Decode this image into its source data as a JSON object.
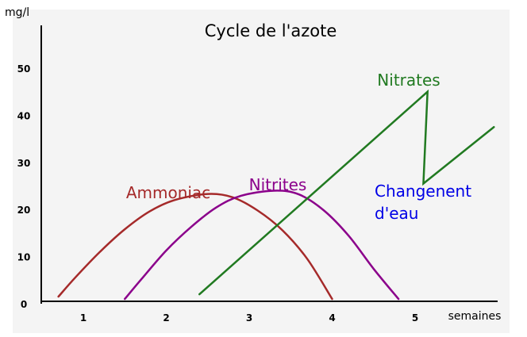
{
  "chart_data": {
    "type": "line",
    "title": "Cycle de l'azote",
    "ylabel": "mg/l",
    "xlabel": "semaines",
    "xlim": [
      0.6,
      5.9
    ],
    "ylim": [
      0,
      60
    ],
    "x_ticks": [
      1,
      2,
      3,
      4,
      5
    ],
    "y_ticks": [
      0,
      10,
      20,
      30,
      40,
      50
    ],
    "series": [
      {
        "name": "Ammoniac",
        "color": "#a52a2a",
        "points": [
          [
            0.7,
            1.5
          ],
          [
            0.9,
            5.5
          ],
          [
            1.2,
            11
          ],
          [
            1.5,
            15.8
          ],
          [
            1.8,
            19.6
          ],
          [
            2.1,
            22
          ],
          [
            2.5,
            23.3
          ],
          [
            2.8,
            22.6
          ],
          [
            3.1,
            19.8
          ],
          [
            3.4,
            15.6
          ],
          [
            3.7,
            9.5
          ],
          [
            4.0,
            1
          ]
        ]
      },
      {
        "name": "Nitrites",
        "color": "#8b008b",
        "points": [
          [
            1.5,
            1
          ],
          [
            1.7,
            5.2
          ],
          [
            2.0,
            11.3
          ],
          [
            2.3,
            16.3
          ],
          [
            2.6,
            20.4
          ],
          [
            2.9,
            22.9
          ],
          [
            3.3,
            24
          ],
          [
            3.6,
            23.2
          ],
          [
            3.9,
            19.8
          ],
          [
            4.2,
            14.4
          ],
          [
            4.5,
            7.4
          ],
          [
            4.8,
            1
          ]
        ]
      },
      {
        "name": "Nitrates",
        "color": "#217a21",
        "points": [
          [
            2.4,
            2
          ],
          [
            5.15,
            45
          ],
          [
            5.1,
            25.5
          ],
          [
            5.95,
            37.5
          ]
        ]
      }
    ],
    "annotations": [
      {
        "text": "Changenent d'eau",
        "lines": [
          "Changenent",
          "d'eau"
        ],
        "color": "#0000e6"
      }
    ]
  }
}
